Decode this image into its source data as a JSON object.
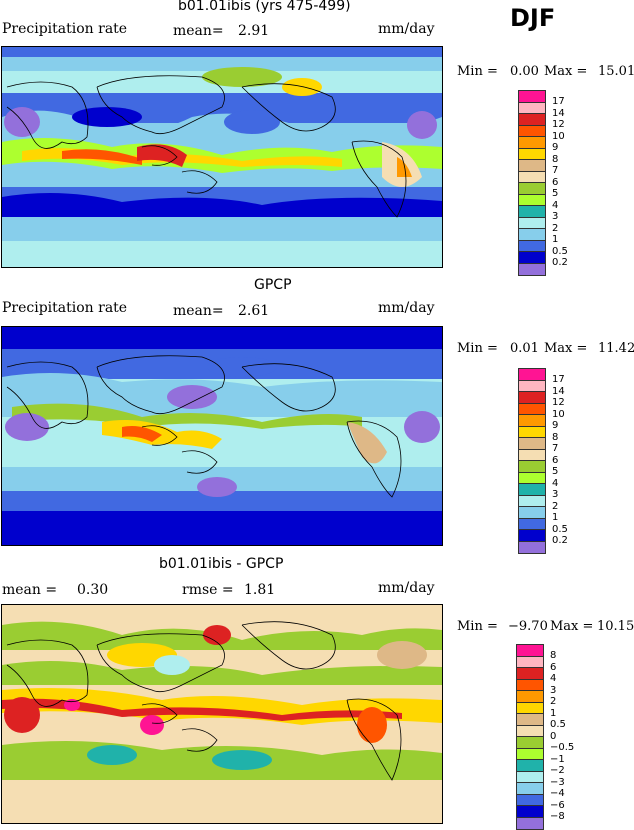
{
  "season": "DJF",
  "panels": [
    {
      "title": "b01.01ibis (yrs 475-499)",
      "left_label": "Precipitation rate",
      "mean_text": "mean=",
      "mean_value": "2.91",
      "units": "mm/day",
      "min_label": "Min =",
      "min_value": "0.00",
      "max_label": "Max =",
      "max_value": "15.01",
      "legend": [
        "17",
        "14",
        "12",
        "10",
        "9",
        "8",
        "7",
        "6",
        "5",
        "4",
        "3",
        "2",
        "1",
        "0.5",
        "0.2"
      ]
    },
    {
      "title": "GPCP",
      "left_label": "Precipitation rate",
      "mean_text": "mean=",
      "mean_value": "2.61",
      "units": "mm/day",
      "min_label": "Min =",
      "min_value": "0.01",
      "max_label": "Max =",
      "max_value": "11.42",
      "legend": [
        "17",
        "14",
        "12",
        "10",
        "9",
        "8",
        "7",
        "6",
        "5",
        "4",
        "3",
        "2",
        "1",
        "0.5",
        "0.2"
      ]
    },
    {
      "title": "b01.01ibis - GPCP",
      "mean_text": "mean =",
      "mean_value": "0.30",
      "rmse_text": "rmse =",
      "rmse_value": "1.81",
      "units": "mm/day",
      "min_label": "Min =",
      "min_value": "−9.70",
      "max_label": "Max =",
      "max_value": "10.15",
      "legend": [
        "8",
        "6",
        "4",
        "3",
        "2",
        "1",
        "0.5",
        "0",
        "−0.5",
        "−1",
        "−2",
        "−3",
        "−4",
        "−6",
        "−8"
      ]
    }
  ],
  "colors": {
    "precip_scale": [
      "#ff1493",
      "#ffb6c1",
      "#dd2222",
      "#ff5500",
      "#ff9900",
      "#ffd700",
      "#deb887",
      "#f5deb3",
      "#9acd32",
      "#adff2f",
      "#20b2aa",
      "#afeeee",
      "#87ceeb",
      "#4169e1",
      "#0000cd",
      "#9370db"
    ],
    "diff_scale": [
      "#ff1493",
      "#ffb6c1",
      "#dd2222",
      "#ff5500",
      "#ff9900",
      "#ffd700",
      "#deb887",
      "#f5deb3",
      "#9acd32",
      "#adff2f",
      "#20b2aa",
      "#afeeee",
      "#87ceeb",
      "#4169e1",
      "#0000cd",
      "#9370db"
    ]
  },
  "icons": {
    "coastline": "world-coastline-map"
  }
}
